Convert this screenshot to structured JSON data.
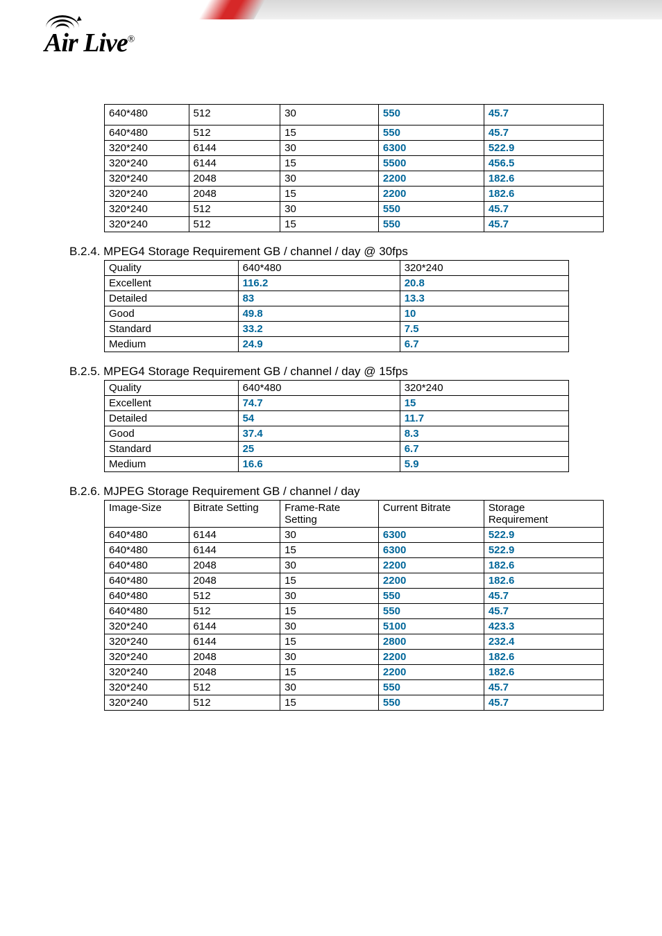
{
  "logo_text": "Air Live",
  "table1": {
    "rows": [
      [
        "640*480",
        "512",
        "30",
        "550",
        "45.7"
      ],
      [
        "640*480",
        "512",
        "15",
        "550",
        "45.7"
      ],
      [
        "320*240",
        "6144",
        "30",
        "6300",
        "522.9"
      ],
      [
        "320*240",
        "6144",
        "15",
        "5500",
        "456.5"
      ],
      [
        "320*240",
        "2048",
        "30",
        "2200",
        "182.6"
      ],
      [
        "320*240",
        "2048",
        "15",
        "2200",
        "182.6"
      ],
      [
        "320*240",
        "512",
        "30",
        "550",
        "45.7"
      ],
      [
        "320*240",
        "512",
        "15",
        "550",
        "45.7"
      ]
    ]
  },
  "section_b24": {
    "title": "B.2.4. MPEG4 Storage Requirement GB / channel / day @ 30fps",
    "header": [
      "Quality",
      "640*480",
      "320*240"
    ],
    "rows": [
      [
        "Excellent",
        "116.2",
        "20.8"
      ],
      [
        "Detailed",
        "83",
        "13.3"
      ],
      [
        "Good",
        "49.8",
        "10"
      ],
      [
        "Standard",
        "33.2",
        "7.5"
      ],
      [
        "Medium",
        "24.9",
        "6.7"
      ]
    ]
  },
  "section_b25": {
    "title": "B.2.5. MPEG4 Storage Requirement GB / channel / day @ 15fps",
    "header": [
      "Quality",
      "640*480",
      "320*240"
    ],
    "rows": [
      [
        "Excellent",
        "74.7",
        "15"
      ],
      [
        "Detailed",
        "54",
        "11.7"
      ],
      [
        "Good",
        "37.4",
        "8.3"
      ],
      [
        "Standard",
        "25",
        "6.7"
      ],
      [
        "Medium",
        "16.6",
        "5.9"
      ]
    ]
  },
  "section_b26": {
    "title": "B.2.6. MJPEG Storage Requirement GB / channel / day",
    "header": [
      "Image-Size",
      "Bitrate Setting",
      "Frame-Rate Setting",
      "Current Bitrate",
      "Storage Requirement"
    ],
    "rows": [
      [
        "640*480",
        "6144",
        "30",
        "6300",
        "522.9"
      ],
      [
        "640*480",
        "6144",
        "15",
        "6300",
        "522.9"
      ],
      [
        "640*480",
        "2048",
        "30",
        "2200",
        "182.6"
      ],
      [
        "640*480",
        "2048",
        "15",
        "2200",
        "182.6"
      ],
      [
        "640*480",
        "512",
        "30",
        "550",
        "45.7"
      ],
      [
        "640*480",
        "512",
        "15",
        "550",
        "45.7"
      ],
      [
        "320*240",
        "6144",
        "30",
        "5100",
        "423.3"
      ],
      [
        "320*240",
        "6144",
        "15",
        "2800",
        "232.4"
      ],
      [
        "320*240",
        "2048",
        "30",
        "2200",
        "182.6"
      ],
      [
        "320*240",
        "2048",
        "15",
        "2200",
        "182.6"
      ],
      [
        "320*240",
        "512",
        "30",
        "550",
        "45.7"
      ],
      [
        "320*240",
        "512",
        "15",
        "550",
        "45.7"
      ]
    ]
  }
}
